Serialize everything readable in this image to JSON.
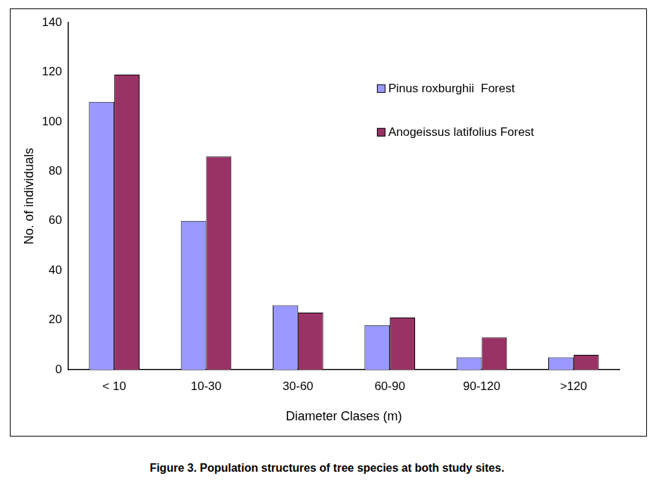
{
  "chart_data": {
    "type": "bar",
    "title": "Figure 3. Population structures of tree species at both study sites.",
    "x_label": "Diameter Clases (m)",
    "y_label": "No. of individuals",
    "categories": [
      "< 10",
      "10-30",
      "30-60",
      "60-90",
      "90-120",
      ">120"
    ],
    "series": [
      {
        "name": "Pinus roxburghii  Forest",
        "color": "#9999ff",
        "values": [
          108,
          60,
          26,
          18,
          5,
          5
        ]
      },
      {
        "name": "Anogeissus latifolius Forest",
        "color": "#993366",
        "values": [
          119,
          86,
          23,
          21,
          13,
          6
        ]
      }
    ],
    "ylim": [
      0,
      140
    ],
    "yticks": [
      0,
      20,
      40,
      60,
      80,
      100,
      120,
      140
    ],
    "grid": false,
    "legend": "upper right"
  }
}
